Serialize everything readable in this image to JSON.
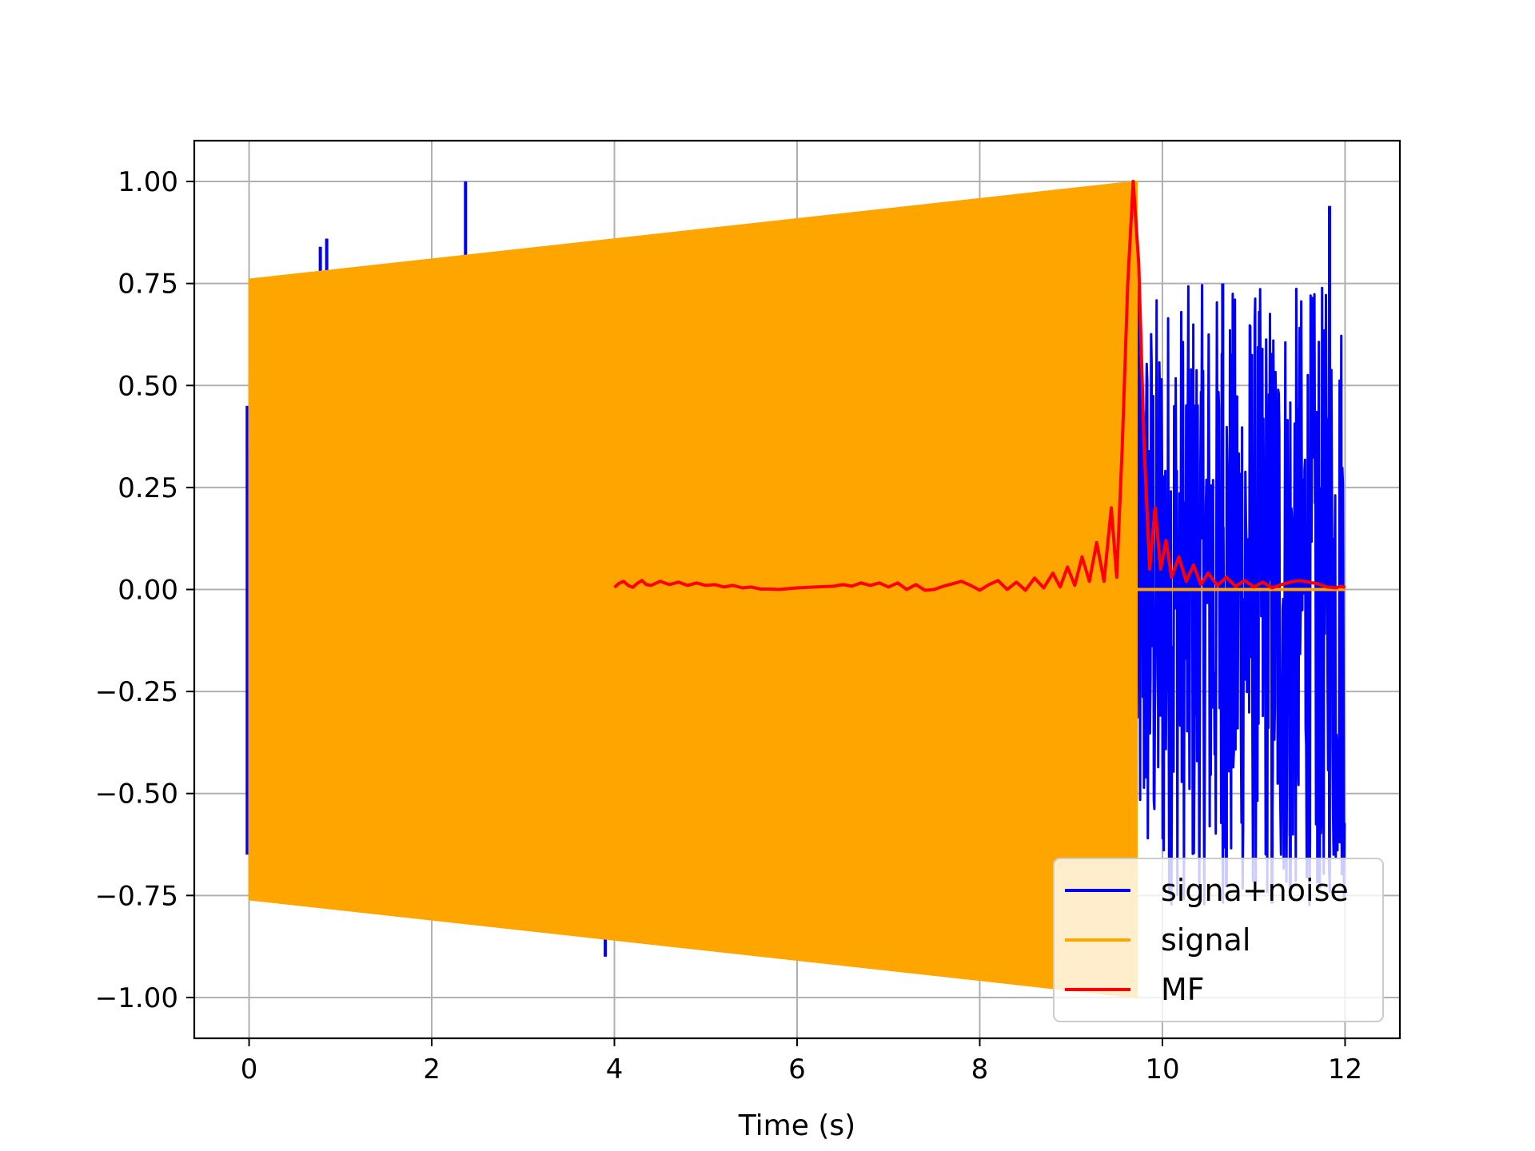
{
  "chart_data": {
    "type": "line",
    "title": "",
    "xlabel": "Time (s)",
    "ylabel": "",
    "xlim": [
      -0.6,
      12.6
    ],
    "ylim": [
      -1.1,
      1.1
    ],
    "xticks": [
      0,
      2,
      4,
      6,
      8,
      10,
      12
    ],
    "xtick_labels": [
      "0",
      "2",
      "4",
      "6",
      "8",
      "10",
      "12"
    ],
    "yticks": [
      1.0,
      0.75,
      0.5,
      0.25,
      0.0,
      -0.25,
      -0.5,
      -0.75,
      -1.0
    ],
    "ytick_labels": [
      "1.00",
      "0.75",
      "0.50",
      "0.25",
      "0.00",
      "−0.25",
      "−0.50",
      "−0.75",
      "−1.00"
    ],
    "grid": true,
    "legend_position": "lower-right",
    "series": [
      {
        "name": "signa+noise",
        "color": "#0000ff",
        "kind": "noisy signal",
        "spikes": [
          {
            "x": 0.78,
            "y": 0.84
          },
          {
            "x": 0.85,
            "y": 0.86
          },
          {
            "x": 2.37,
            "y": 1.0
          },
          {
            "x": 3.9,
            "y": -0.9
          },
          {
            "x": 4.97,
            "y": 0.88
          },
          {
            "x": 6.92,
            "y": -0.91
          },
          {
            "x": 6.96,
            "y": 0.9
          },
          {
            "x": 8.4,
            "y": 0.95
          },
          {
            "x": 11.83,
            "y": 0.94
          },
          {
            "x": 11.2,
            "y": -0.77
          },
          {
            "x": 11.4,
            "y": -0.73
          },
          {
            "x": 10.7,
            "y": -0.73
          },
          {
            "x": 11.7,
            "y": -0.72
          },
          {
            "x": 10.66,
            "y": 0.75
          }
        ],
        "noise_region": {
          "x_start": 9.72,
          "x_end": 12.0,
          "amplitude_min": -0.78,
          "amplitude_max": 0.75
        }
      },
      {
        "name": "signal",
        "color": "#ffa500",
        "kind": "chirp",
        "x_start": 0.0,
        "x_end": 9.72,
        "envelope": [
          {
            "x": 0.0,
            "y": 0.76
          },
          {
            "x": 9.72,
            "y": 1.0
          }
        ],
        "after_end_value": 0.0
      },
      {
        "name": "MF",
        "color": "#ff0000",
        "kind": "matched filter output",
        "points": [
          {
            "x": 4.0,
            "y": 0.005
          },
          {
            "x": 4.05,
            "y": 0.015
          },
          {
            "x": 4.1,
            "y": 0.02
          },
          {
            "x": 4.15,
            "y": 0.01
          },
          {
            "x": 4.2,
            "y": 0.005
          },
          {
            "x": 4.25,
            "y": 0.015
          },
          {
            "x": 4.3,
            "y": 0.022
          },
          {
            "x": 4.35,
            "y": 0.012
          },
          {
            "x": 4.4,
            "y": 0.01
          },
          {
            "x": 4.5,
            "y": 0.02
          },
          {
            "x": 4.6,
            "y": 0.012
          },
          {
            "x": 4.7,
            "y": 0.018
          },
          {
            "x": 4.8,
            "y": 0.01
          },
          {
            "x": 4.9,
            "y": 0.016
          },
          {
            "x": 5.0,
            "y": 0.01
          },
          {
            "x": 5.1,
            "y": 0.012
          },
          {
            "x": 5.2,
            "y": 0.006
          },
          {
            "x": 5.3,
            "y": 0.01
          },
          {
            "x": 5.4,
            "y": 0.004
          },
          {
            "x": 5.5,
            "y": 0.006
          },
          {
            "x": 5.6,
            "y": 0.001
          },
          {
            "x": 5.7,
            "y": 0.001
          },
          {
            "x": 5.8,
            "y": 0.0
          },
          {
            "x": 5.9,
            "y": 0.002
          },
          {
            "x": 6.0,
            "y": 0.004
          },
          {
            "x": 6.2,
            "y": 0.006
          },
          {
            "x": 6.4,
            "y": 0.008
          },
          {
            "x": 6.5,
            "y": 0.012
          },
          {
            "x": 6.6,
            "y": 0.008
          },
          {
            "x": 6.7,
            "y": 0.016
          },
          {
            "x": 6.8,
            "y": 0.01
          },
          {
            "x": 6.9,
            "y": 0.016
          },
          {
            "x": 7.0,
            "y": 0.006
          },
          {
            "x": 7.1,
            "y": 0.016
          },
          {
            "x": 7.2,
            "y": 0.0
          },
          {
            "x": 7.3,
            "y": 0.012
          },
          {
            "x": 7.4,
            "y": -0.002
          },
          {
            "x": 7.5,
            "y": 0.0
          },
          {
            "x": 7.6,
            "y": 0.008
          },
          {
            "x": 7.7,
            "y": 0.014
          },
          {
            "x": 7.8,
            "y": 0.02
          },
          {
            "x": 7.9,
            "y": 0.01
          },
          {
            "x": 8.0,
            "y": -0.002
          },
          {
            "x": 8.1,
            "y": 0.012
          },
          {
            "x": 8.2,
            "y": 0.022
          },
          {
            "x": 8.3,
            "y": 0.0
          },
          {
            "x": 8.4,
            "y": 0.018
          },
          {
            "x": 8.5,
            "y": -0.002
          },
          {
            "x": 8.6,
            "y": 0.028
          },
          {
            "x": 8.7,
            "y": 0.004
          },
          {
            "x": 8.8,
            "y": 0.04
          },
          {
            "x": 8.88,
            "y": 0.006
          },
          {
            "x": 8.96,
            "y": 0.055
          },
          {
            "x": 9.04,
            "y": 0.01
          },
          {
            "x": 9.12,
            "y": 0.08
          },
          {
            "x": 9.2,
            "y": 0.02
          },
          {
            "x": 9.28,
            "y": 0.115
          },
          {
            "x": 9.36,
            "y": 0.02
          },
          {
            "x": 9.44,
            "y": 0.2
          },
          {
            "x": 9.5,
            "y": 0.03
          },
          {
            "x": 9.56,
            "y": 0.35
          },
          {
            "x": 9.62,
            "y": 0.75
          },
          {
            "x": 9.68,
            "y": 1.0
          },
          {
            "x": 9.74,
            "y": 0.8
          },
          {
            "x": 9.8,
            "y": 0.35
          },
          {
            "x": 9.86,
            "y": 0.05
          },
          {
            "x": 9.92,
            "y": 0.2
          },
          {
            "x": 9.98,
            "y": 0.05
          },
          {
            "x": 10.04,
            "y": 0.12
          },
          {
            "x": 10.1,
            "y": 0.03
          },
          {
            "x": 10.18,
            "y": 0.08
          },
          {
            "x": 10.26,
            "y": 0.02
          },
          {
            "x": 10.34,
            "y": 0.06
          },
          {
            "x": 10.42,
            "y": 0.012
          },
          {
            "x": 10.5,
            "y": 0.04
          },
          {
            "x": 10.6,
            "y": 0.01
          },
          {
            "x": 10.7,
            "y": 0.03
          },
          {
            "x": 10.8,
            "y": 0.008
          },
          {
            "x": 10.9,
            "y": 0.022
          },
          {
            "x": 11.0,
            "y": 0.006
          },
          {
            "x": 11.1,
            "y": 0.018
          },
          {
            "x": 11.2,
            "y": 0.004
          },
          {
            "x": 11.3,
            "y": 0.012
          },
          {
            "x": 11.4,
            "y": 0.018
          },
          {
            "x": 11.5,
            "y": 0.022
          },
          {
            "x": 11.6,
            "y": 0.018
          },
          {
            "x": 11.7,
            "y": 0.014
          },
          {
            "x": 11.8,
            "y": 0.006
          },
          {
            "x": 11.9,
            "y": 0.004
          },
          {
            "x": 11.95,
            "y": 0.008
          },
          {
            "x": 12.0,
            "y": 0.005
          }
        ]
      }
    ]
  }
}
